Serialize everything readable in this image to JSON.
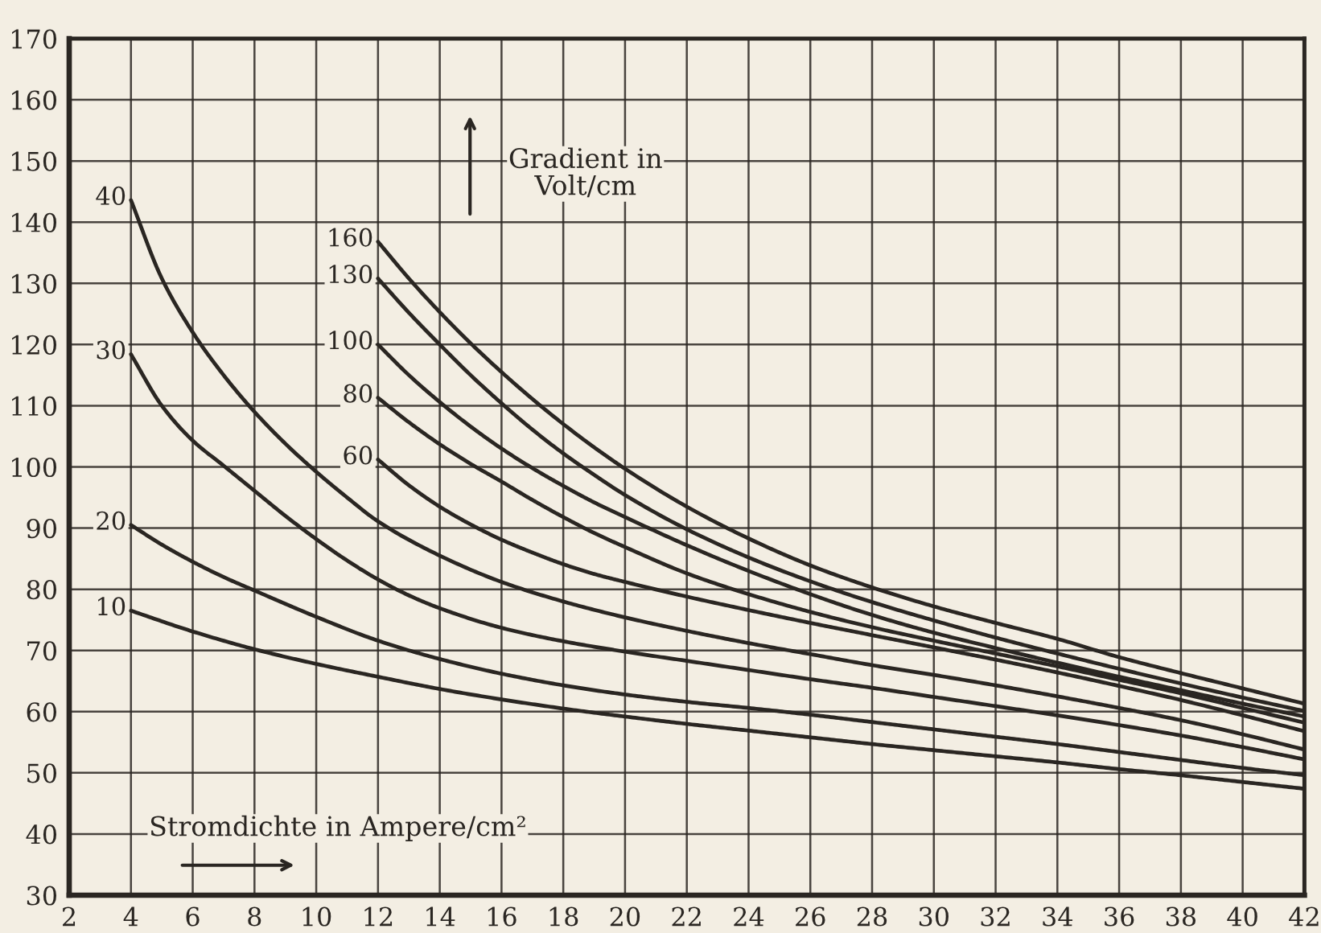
{
  "chart_data": {
    "type": "line",
    "xlabel": "Stromdichte in Ampere/cm²",
    "ylabel": "Gradient in Volt/cm",
    "xlim": [
      2,
      42
    ],
    "xticks": [
      2,
      4,
      6,
      8,
      10,
      12,
      14,
      16,
      18,
      20,
      22,
      24,
      26,
      28,
      30,
      32,
      34,
      36,
      38,
      40,
      42
    ],
    "ylim": [
      30,
      170
    ],
    "yticks": [
      30,
      40,
      50,
      60,
      70,
      80,
      90,
      100,
      110,
      120,
      130,
      140,
      150,
      160,
      170
    ],
    "grid": true,
    "series": [
      {
        "name": "10",
        "color": "#2a2622",
        "x": [
          4,
          6,
          8,
          10,
          12,
          14,
          16,
          18,
          20,
          22,
          24,
          26,
          28,
          30,
          32,
          34,
          36,
          38,
          40,
          42
        ],
        "values": [
          76.5,
          73.1,
          70.2,
          67.8,
          65.7,
          63.7,
          62,
          60.5,
          59.2,
          58,
          56.9,
          55.8,
          54.7,
          53.7,
          52.7,
          51.7,
          50.6,
          49.6,
          48.5,
          47.4
        ]
      },
      {
        "name": "20",
        "color": "#2a2622",
        "x": [
          4,
          5,
          6,
          7,
          8,
          10,
          12,
          14,
          16,
          18,
          20,
          22,
          24,
          26,
          28,
          30,
          32,
          34,
          36,
          38,
          40,
          42
        ],
        "values": [
          90.5,
          87.3,
          84.5,
          82,
          79.8,
          75.5,
          71.6,
          68.6,
          66.2,
          64.3,
          62.8,
          61.6,
          60.6,
          59.5,
          58.3,
          57.1,
          55.9,
          54.7,
          53.4,
          52.1,
          50.8,
          49.6
        ]
      },
      {
        "name": "30",
        "color": "#2a2622",
        "x": [
          4,
          5,
          6,
          7,
          8,
          9,
          10,
          11,
          12,
          13,
          14,
          16,
          18,
          20,
          22,
          24,
          26,
          28,
          30,
          32,
          34,
          36,
          38,
          40,
          42
        ],
        "values": [
          118.4,
          110,
          104.3,
          100.2,
          96.1,
          92,
          88.2,
          84.7,
          81.6,
          79,
          76.9,
          73.7,
          71.5,
          69.8,
          68.3,
          66.8,
          65.3,
          63.9,
          62.4,
          60.9,
          59.4,
          57.8,
          56.1,
          54.2,
          52.2
        ]
      },
      {
        "name": "40",
        "color": "#2a2622",
        "x": [
          4,
          5,
          6,
          7,
          8,
          9,
          10,
          11,
          12,
          14,
          16,
          18,
          20,
          22,
          24,
          26,
          28,
          30,
          32,
          34,
          36,
          38,
          40,
          42
        ],
        "values": [
          143.6,
          130.8,
          122,
          115,
          109,
          103.8,
          99.2,
          95,
          91.1,
          85.5,
          81.2,
          78,
          75.4,
          73.2,
          71.2,
          69.4,
          67.6,
          66,
          64.3,
          62.5,
          60.6,
          58.6,
          56.3,
          53.8
        ]
      },
      {
        "name": "60",
        "color": "#2a2622",
        "x": [
          12,
          13,
          14,
          15,
          16,
          17,
          18,
          19,
          20,
          22,
          24,
          26,
          28,
          30,
          32,
          34,
          36,
          38,
          40,
          42
        ],
        "values": [
          101.2,
          97,
          93.5,
          90.6,
          88.1,
          86,
          84.1,
          82.5,
          81.2,
          78.8,
          76.6,
          74.5,
          72.5,
          70.5,
          68.5,
          66.4,
          64.2,
          61.9,
          59.4,
          56.8
        ]
      },
      {
        "name": "80",
        "color": "#2a2622",
        "x": [
          12,
          13,
          14,
          15,
          16,
          17,
          18,
          19,
          20,
          22,
          24,
          26,
          28,
          30,
          32,
          34,
          36,
          38,
          40,
          42
        ],
        "values": [
          111.3,
          107.3,
          103.7,
          100.5,
          97.6,
          94.6,
          91.8,
          89.2,
          86.9,
          82.6,
          79.2,
          76.3,
          73.8,
          71.6,
          69.5,
          67.4,
          65.2,
          63,
          60.6,
          58.2
        ]
      },
      {
        "name": "100",
        "color": "#2a2622",
        "x": [
          12,
          13,
          14,
          15,
          16,
          17,
          18,
          19,
          20,
          22,
          24,
          26,
          28,
          30,
          32,
          34,
          36,
          38,
          40,
          42
        ],
        "values": [
          120,
          115,
          110.6,
          106.6,
          103,
          99.8,
          96.9,
          94.2,
          91.8,
          87.2,
          83,
          79.2,
          75.8,
          72.9,
          70.4,
          68,
          65.7,
          63.5,
          61.3,
          59.2
        ]
      },
      {
        "name": "130",
        "color": "#2a2622",
        "x": [
          12,
          13,
          14,
          15,
          16,
          17,
          18,
          19,
          20,
          22,
          24,
          26,
          28,
          30,
          32,
          34,
          36,
          38,
          40,
          42
        ],
        "values": [
          130.8,
          125.2,
          120,
          115,
          110.4,
          106.1,
          102.2,
          98.7,
          95.4,
          89.8,
          85.2,
          81.3,
          77.9,
          74.9,
          72.1,
          69.5,
          67,
          64.6,
          62.3,
          60.1
        ]
      },
      {
        "name": "160",
        "color": "#2a2622",
        "x": [
          12,
          13,
          14,
          15,
          16,
          17,
          18,
          19,
          20,
          22,
          24,
          26,
          28,
          30,
          32,
          34,
          36,
          38,
          40,
          42
        ],
        "values": [
          136.8,
          130.8,
          125.3,
          120.2,
          115.5,
          111.1,
          107,
          103.2,
          99.7,
          93.5,
          88.3,
          83.9,
          80.3,
          77.2,
          74.5,
          71.9,
          68.9,
          66.3,
          63.8,
          61.3
        ]
      }
    ]
  }
}
